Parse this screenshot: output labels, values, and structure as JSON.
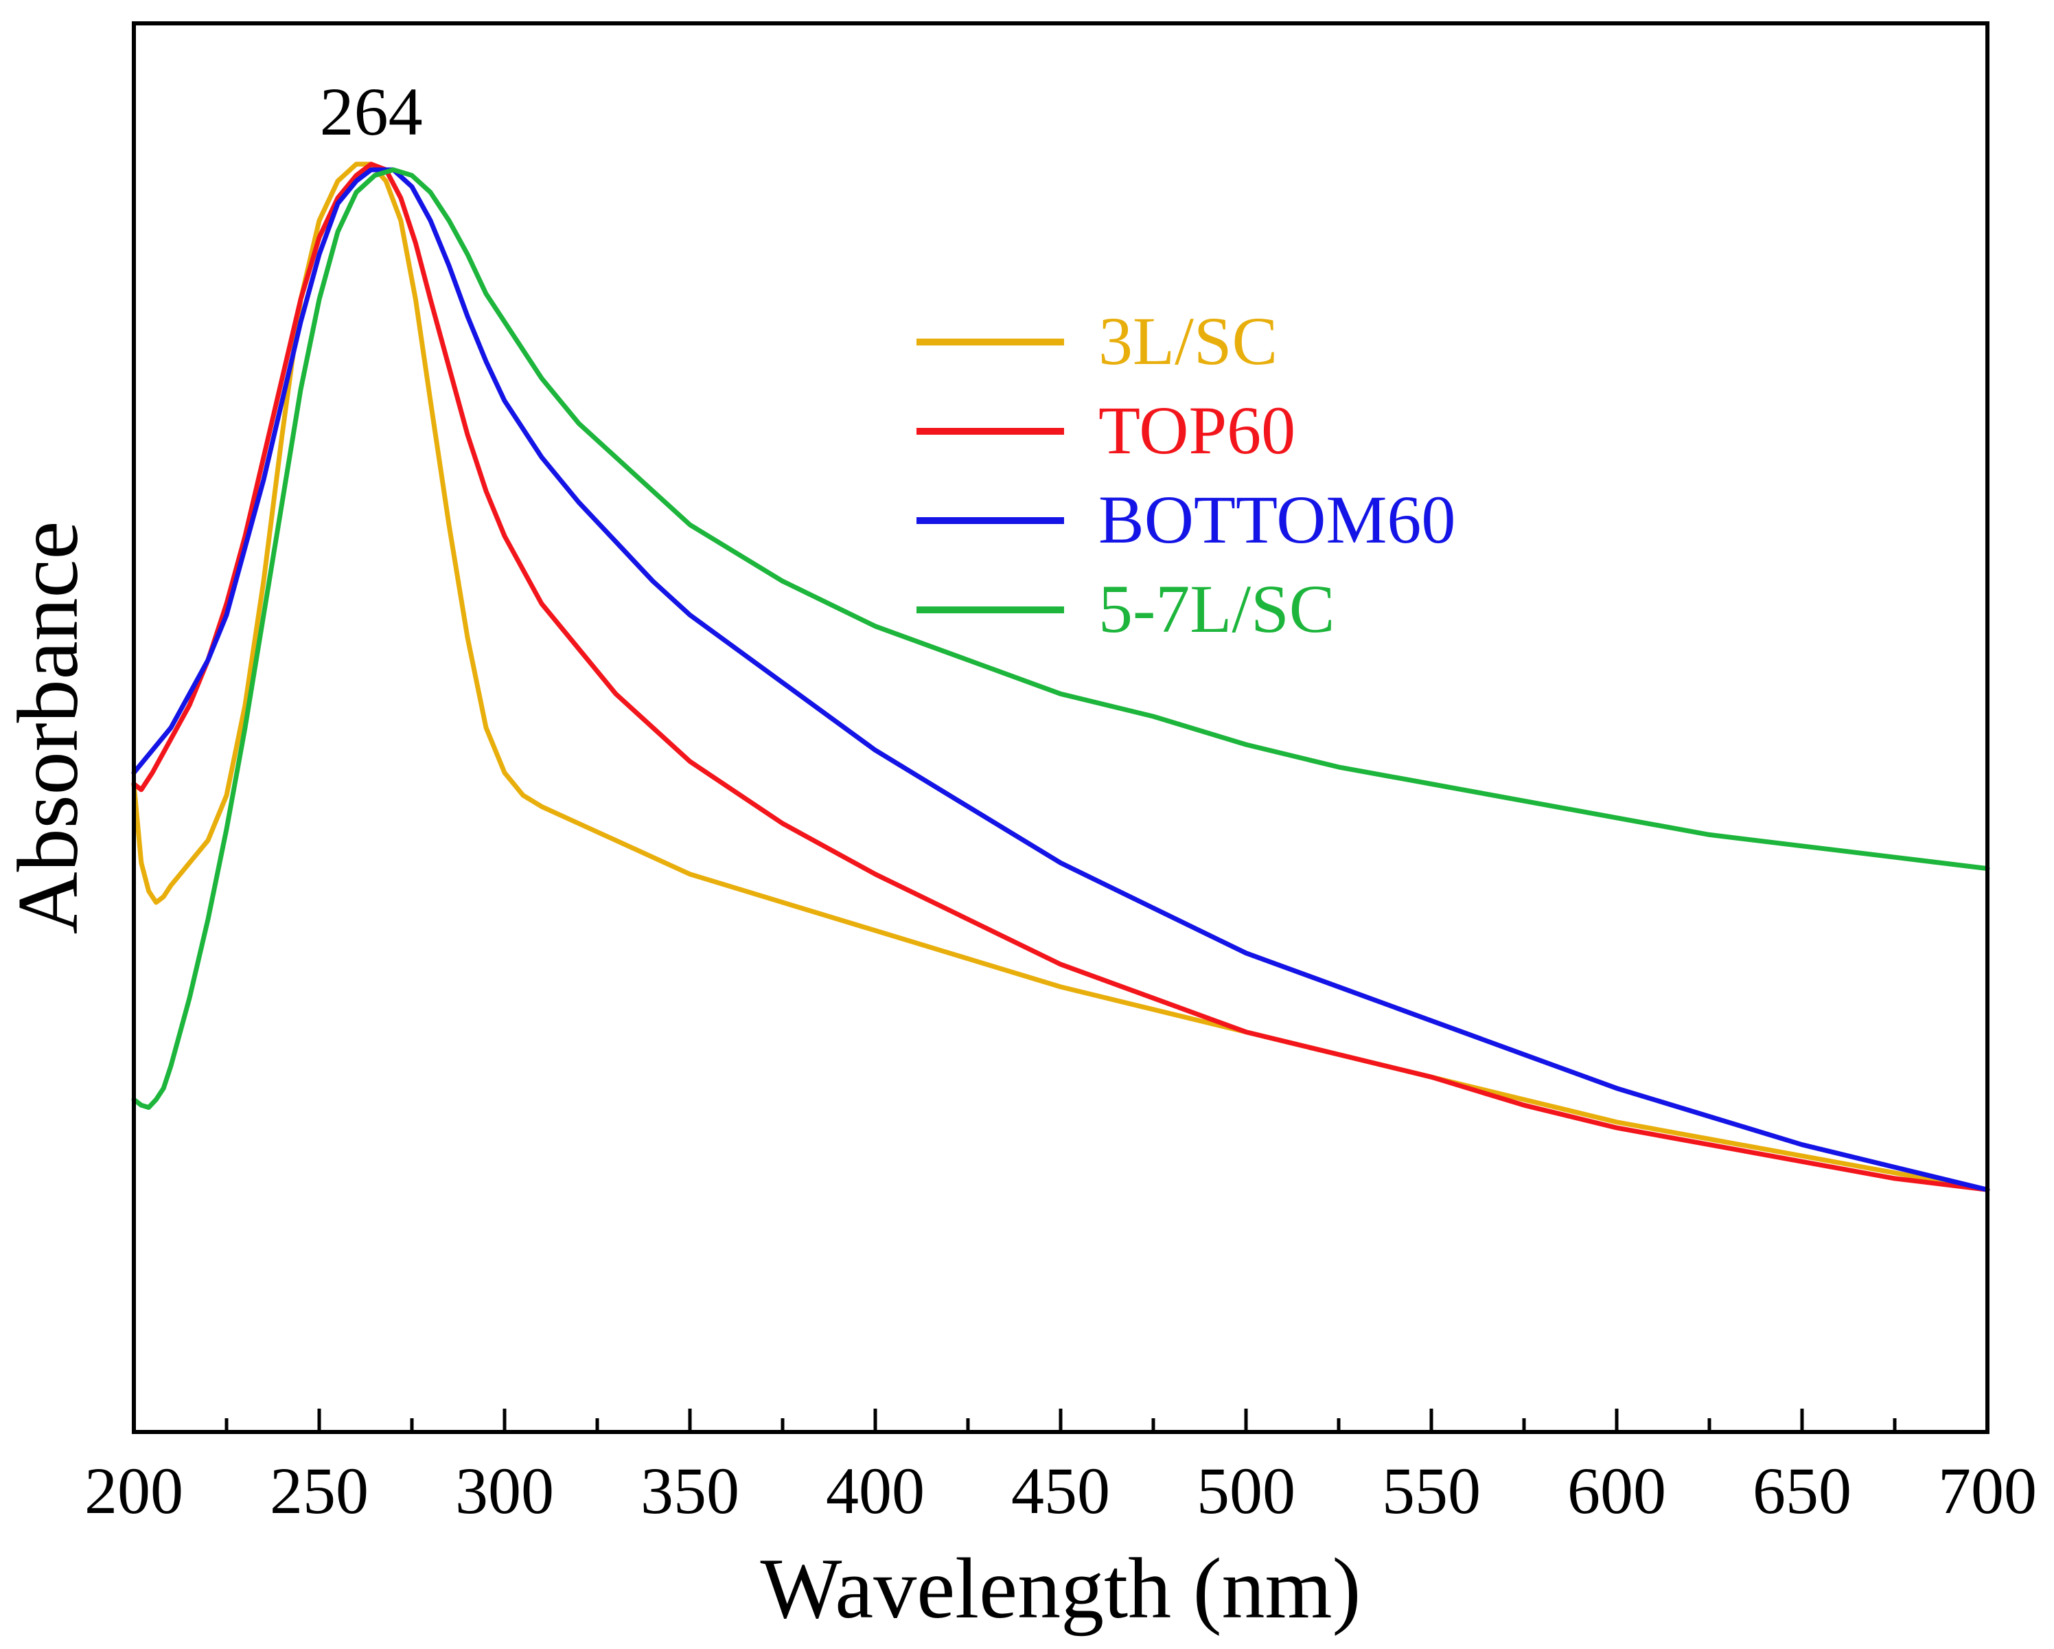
{
  "chart_data": {
    "type": "line",
    "title": "",
    "xlabel": "Wavelength (nm)",
    "ylabel": "Absorbance",
    "xlim": [
      200,
      700
    ],
    "ylim": [
      0,
      1
    ],
    "x_major_ticks": [
      200,
      250,
      300,
      350,
      400,
      450,
      500,
      550,
      600,
      650,
      700
    ],
    "x_tick_labels": [
      "200",
      "250",
      "300",
      "350",
      "400",
      "450",
      "500",
      "550",
      "600",
      "650",
      "700"
    ],
    "x_minor_ticks": [
      225,
      275,
      325,
      375,
      425,
      475,
      525,
      575,
      625,
      675
    ],
    "y_ticks_shown": false,
    "grid": false,
    "legend_position": "upper-right-center",
    "annotations": [
      {
        "text": "264",
        "x": 264,
        "y": 1.03
      }
    ],
    "series": [
      {
        "name": "3L/SC",
        "color": "#E8AE0C",
        "points": [
          [
            200,
            0.45
          ],
          [
            202,
            0.38
          ],
          [
            204,
            0.355
          ],
          [
            206,
            0.345
          ],
          [
            208,
            0.35
          ],
          [
            210,
            0.36
          ],
          [
            215,
            0.38
          ],
          [
            220,
            0.4
          ],
          [
            225,
            0.44
          ],
          [
            230,
            0.52
          ],
          [
            235,
            0.63
          ],
          [
            240,
            0.76
          ],
          [
            245,
            0.88
          ],
          [
            250,
            0.95
          ],
          [
            255,
            0.985
          ],
          [
            260,
            1.0
          ],
          [
            264,
            1.0
          ],
          [
            268,
            0.985
          ],
          [
            272,
            0.95
          ],
          [
            276,
            0.88
          ],
          [
            280,
            0.79
          ],
          [
            285,
            0.68
          ],
          [
            290,
            0.58
          ],
          [
            295,
            0.5
          ],
          [
            300,
            0.46
          ],
          [
            305,
            0.44
          ],
          [
            310,
            0.43
          ],
          [
            320,
            0.415
          ],
          [
            330,
            0.4
          ],
          [
            340,
            0.385
          ],
          [
            350,
            0.37
          ],
          [
            375,
            0.345
          ],
          [
            400,
            0.32
          ],
          [
            425,
            0.295
          ],
          [
            450,
            0.27
          ],
          [
            475,
            0.25
          ],
          [
            500,
            0.23
          ],
          [
            525,
            0.21
          ],
          [
            550,
            0.19
          ],
          [
            575,
            0.17
          ],
          [
            600,
            0.15
          ],
          [
            625,
            0.135
          ],
          [
            650,
            0.12
          ],
          [
            675,
            0.105
          ],
          [
            700,
            0.09
          ]
        ]
      },
      {
        "name": "TOP60",
        "color": "#F2161C",
        "points": [
          [
            200,
            0.45
          ],
          [
            202,
            0.445
          ],
          [
            205,
            0.46
          ],
          [
            210,
            0.49
          ],
          [
            215,
            0.52
          ],
          [
            220,
            0.56
          ],
          [
            225,
            0.61
          ],
          [
            230,
            0.67
          ],
          [
            235,
            0.74
          ],
          [
            240,
            0.81
          ],
          [
            245,
            0.88
          ],
          [
            250,
            0.935
          ],
          [
            255,
            0.97
          ],
          [
            260,
            0.99
          ],
          [
            264,
            1.0
          ],
          [
            268,
            0.995
          ],
          [
            272,
            0.97
          ],
          [
            276,
            0.93
          ],
          [
            280,
            0.88
          ],
          [
            285,
            0.82
          ],
          [
            290,
            0.76
          ],
          [
            295,
            0.71
          ],
          [
            300,
            0.67
          ],
          [
            310,
            0.61
          ],
          [
            320,
            0.57
          ],
          [
            330,
            0.53
          ],
          [
            340,
            0.5
          ],
          [
            350,
            0.47
          ],
          [
            375,
            0.415
          ],
          [
            400,
            0.37
          ],
          [
            425,
            0.33
          ],
          [
            450,
            0.29
          ],
          [
            475,
            0.26
          ],
          [
            500,
            0.23
          ],
          [
            525,
            0.21
          ],
          [
            550,
            0.19
          ],
          [
            575,
            0.165
          ],
          [
            600,
            0.145
          ],
          [
            625,
            0.13
          ],
          [
            650,
            0.115
          ],
          [
            675,
            0.1
          ],
          [
            700,
            0.09
          ]
        ]
      },
      {
        "name": "BOTTOM60",
        "color": "#1414E6",
        "points": [
          [
            200,
            0.46
          ],
          [
            205,
            0.48
          ],
          [
            210,
            0.5
          ],
          [
            215,
            0.53
          ],
          [
            220,
            0.56
          ],
          [
            225,
            0.6
          ],
          [
            230,
            0.66
          ],
          [
            235,
            0.72
          ],
          [
            240,
            0.79
          ],
          [
            245,
            0.86
          ],
          [
            250,
            0.92
          ],
          [
            255,
            0.965
          ],
          [
            260,
            0.985
          ],
          [
            264,
            0.995
          ],
          [
            270,
            0.995
          ],
          [
            275,
            0.98
          ],
          [
            280,
            0.95
          ],
          [
            285,
            0.91
          ],
          [
            290,
            0.865
          ],
          [
            295,
            0.825
          ],
          [
            300,
            0.79
          ],
          [
            310,
            0.74
          ],
          [
            320,
            0.7
          ],
          [
            330,
            0.665
          ],
          [
            340,
            0.63
          ],
          [
            350,
            0.6
          ],
          [
            375,
            0.54
          ],
          [
            400,
            0.48
          ],
          [
            425,
            0.43
          ],
          [
            450,
            0.38
          ],
          [
            475,
            0.34
          ],
          [
            500,
            0.3
          ],
          [
            525,
            0.27
          ],
          [
            550,
            0.24
          ],
          [
            575,
            0.21
          ],
          [
            600,
            0.18
          ],
          [
            625,
            0.155
          ],
          [
            650,
            0.13
          ],
          [
            675,
            0.11
          ],
          [
            700,
            0.09
          ]
        ]
      },
      {
        "name": "5-7L/SC",
        "color": "#1DB53C",
        "points": [
          [
            200,
            0.17
          ],
          [
            202,
            0.165
          ],
          [
            204,
            0.163
          ],
          [
            206,
            0.17
          ],
          [
            208,
            0.18
          ],
          [
            210,
            0.2
          ],
          [
            215,
            0.26
          ],
          [
            220,
            0.33
          ],
          [
            225,
            0.41
          ],
          [
            230,
            0.5
          ],
          [
            235,
            0.6
          ],
          [
            240,
            0.7
          ],
          [
            245,
            0.8
          ],
          [
            250,
            0.88
          ],
          [
            255,
            0.94
          ],
          [
            260,
            0.975
          ],
          [
            265,
            0.99
          ],
          [
            270,
            0.995
          ],
          [
            275,
            0.99
          ],
          [
            280,
            0.975
          ],
          [
            285,
            0.95
          ],
          [
            290,
            0.92
          ],
          [
            295,
            0.885
          ],
          [
            300,
            0.86
          ],
          [
            310,
            0.81
          ],
          [
            320,
            0.77
          ],
          [
            330,
            0.74
          ],
          [
            340,
            0.71
          ],
          [
            350,
            0.68
          ],
          [
            375,
            0.63
          ],
          [
            400,
            0.59
          ],
          [
            425,
            0.56
          ],
          [
            450,
            0.53
          ],
          [
            475,
            0.51
          ],
          [
            500,
            0.485
          ],
          [
            525,
            0.465
          ],
          [
            550,
            0.45
          ],
          [
            575,
            0.435
          ],
          [
            600,
            0.42
          ],
          [
            625,
            0.405
          ],
          [
            650,
            0.395
          ],
          [
            675,
            0.385
          ],
          [
            700,
            0.375
          ]
        ]
      }
    ]
  }
}
